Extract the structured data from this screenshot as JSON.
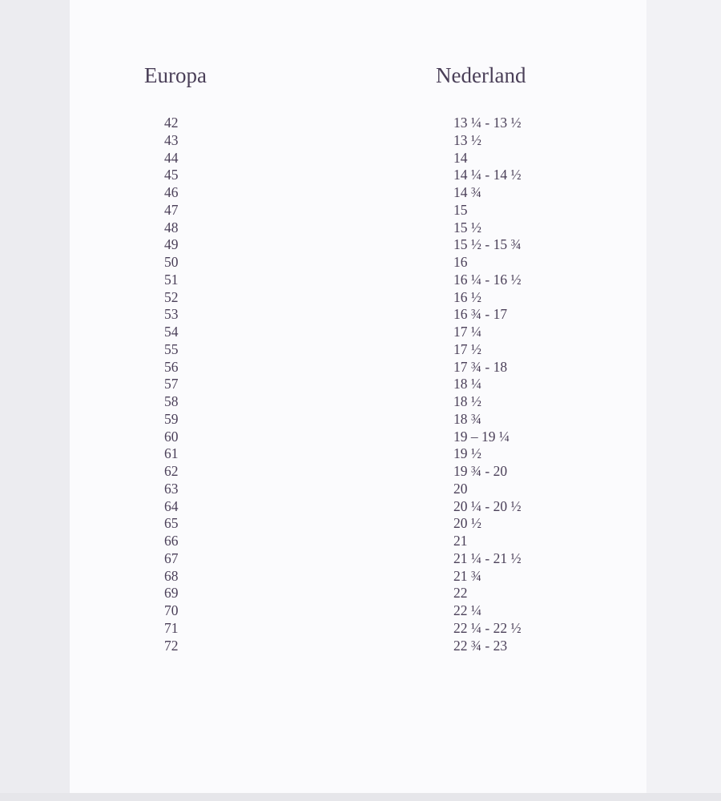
{
  "headers": {
    "europa": "Europa",
    "nederland": "Nederland"
  },
  "rows": [
    {
      "europa": "42",
      "nederland": "13 ¼ - 13 ½"
    },
    {
      "europa": "43",
      "nederland": "13 ½"
    },
    {
      "europa": "44",
      "nederland": "14"
    },
    {
      "europa": "45",
      "nederland": "14 ¼ - 14 ½"
    },
    {
      "europa": "46",
      "nederland": "14 ¾"
    },
    {
      "europa": "47",
      "nederland": "15"
    },
    {
      "europa": "48",
      "nederland": "15 ½"
    },
    {
      "europa": "49",
      "nederland": "15 ½ - 15 ¾"
    },
    {
      "europa": "50",
      "nederland": "16"
    },
    {
      "europa": "51",
      "nederland": "16 ¼ - 16 ½"
    },
    {
      "europa": "52",
      "nederland": "16 ½"
    },
    {
      "europa": "53",
      "nederland": "16 ¾ - 17"
    },
    {
      "europa": "54",
      "nederland": "17 ¼"
    },
    {
      "europa": "55",
      "nederland": "17 ½"
    },
    {
      "europa": "56",
      "nederland": "17 ¾ - 18"
    },
    {
      "europa": "57",
      "nederland": "18 ¼"
    },
    {
      "europa": "58",
      "nederland": "18 ½"
    },
    {
      "europa": "59",
      "nederland": "18 ¾"
    },
    {
      "europa": "60",
      "nederland": "19 – 19 ¼"
    },
    {
      "europa": "61",
      "nederland": "19 ½"
    },
    {
      "europa": "62",
      "nederland": "19 ¾ - 20"
    },
    {
      "europa": "63",
      "nederland": "20"
    },
    {
      "europa": "64",
      "nederland": "20 ¼ - 20 ½"
    },
    {
      "europa": "65",
      "nederland": "20 ½"
    },
    {
      "europa": "66",
      "nederland": "21"
    },
    {
      "europa": "67",
      "nederland": "21 ¼ - 21 ½"
    },
    {
      "europa": "68",
      "nederland": "21 ¾"
    },
    {
      "europa": "69",
      "nederland": "22"
    },
    {
      "europa": "70",
      "nederland": "22 ¼"
    },
    {
      "europa": "71",
      "nederland": "22 ¼ - 22 ½"
    },
    {
      "europa": "72",
      "nederland": "22 ¾ - 23"
    }
  ]
}
